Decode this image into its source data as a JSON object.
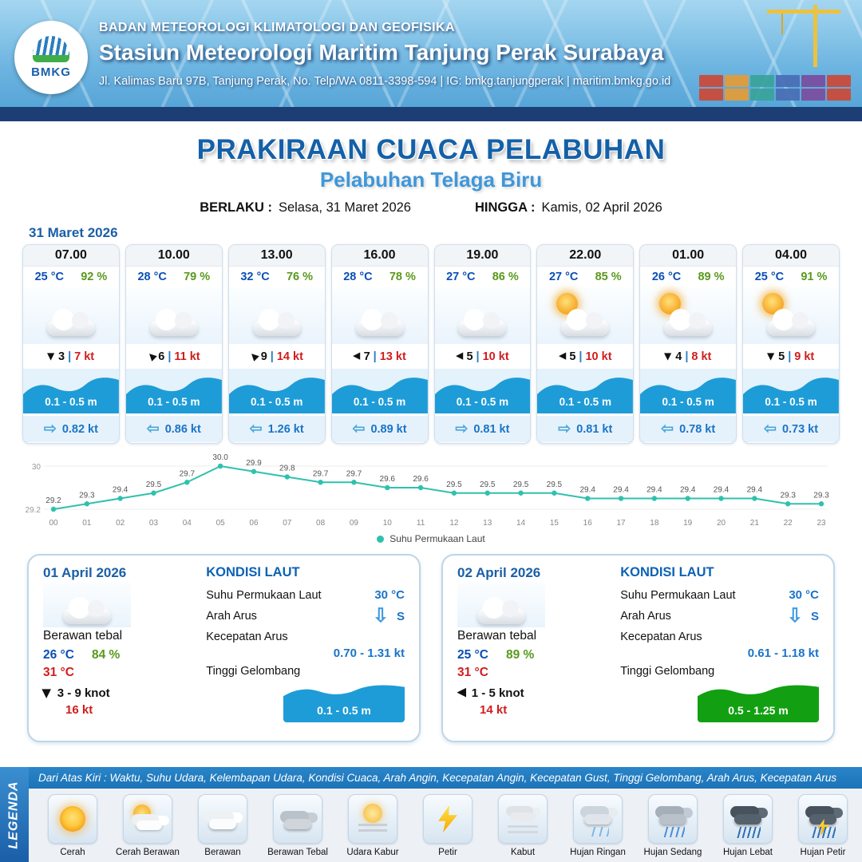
{
  "colors": {
    "header_strip_navy": "#1d3e74",
    "title_blue": "#1460a8",
    "subtitle_blue": "#3f97d9",
    "date_blue": "#1a5fa8",
    "temp_blue": "#0a4fb5",
    "value_blue": "#1a74c8",
    "humidity_green": "#59991c",
    "gust_red": "#d21c1c",
    "wave_blue": "#1e9cd7",
    "wave_green": "#12a012",
    "chart_teal": "#2fc1ad",
    "legend_bar_blue": "#1c73b8"
  },
  "header": {
    "logo_text": "BMKG",
    "agency": "BADAN METEOROLOGI KLIMATOLOGI DAN GEOFISIKA",
    "station": "Stasiun Meteorologi Maritim Tanjung Perak Surabaya",
    "address": "Jl. Kalimas Baru 97B, Tanjung Perak, No. Telp/WA 0811-3398-594 | IG: bmkg.tanjungperak | maritim.bmkg.go.id"
  },
  "title": {
    "main": "PRAKIRAAN CUACA PELABUHAN",
    "port": "Pelabuhan Telaga Biru",
    "valid_label": "BERLAKU :",
    "valid_value": "Selasa, 31 Maret 2026",
    "until_label": "HINGGA :",
    "until_value": "Kamis, 02 April 2026"
  },
  "hourly": {
    "date": "31 Maret 2026",
    "sep": "|",
    "cards": [
      {
        "time": "07.00",
        "temp": "25 °C",
        "hum": "92 %",
        "icon": "berawan",
        "wind_dir": "S",
        "wind_speed": "3",
        "gust": "7 kt",
        "wave": "0.1 - 0.5 m",
        "cur_dir": "E",
        "cur_speed": "0.82 kt"
      },
      {
        "time": "10.00",
        "temp": "28 °C",
        "hum": "79 %",
        "icon": "berawan",
        "wind_dir": "NW",
        "wind_speed": "6",
        "gust": "11 kt",
        "wave": "0.1 - 0.5 m",
        "cur_dir": "W",
        "cur_speed": "0.86 kt"
      },
      {
        "time": "13.00",
        "temp": "32 °C",
        "hum": "76 %",
        "icon": "berawan",
        "wind_dir": "NW",
        "wind_speed": "9",
        "gust": "14 kt",
        "wave": "0.1 - 0.5 m",
        "cur_dir": "W",
        "cur_speed": "1.26 kt"
      },
      {
        "time": "16.00",
        "temp": "28 °C",
        "hum": "78 %",
        "icon": "berawan",
        "wind_dir": "W",
        "wind_speed": "7",
        "gust": "13 kt",
        "wave": "0.1 - 0.5 m",
        "cur_dir": "W",
        "cur_speed": "0.89 kt"
      },
      {
        "time": "19.00",
        "temp": "27 °C",
        "hum": "86 %",
        "icon": "berawan",
        "wind_dir": "W",
        "wind_speed": "5",
        "gust": "10 kt",
        "wave": "0.1 - 0.5 m",
        "cur_dir": "E",
        "cur_speed": "0.81 kt"
      },
      {
        "time": "22.00",
        "temp": "27 °C",
        "hum": "85 %",
        "icon": "cerah-berawan",
        "wind_dir": "W",
        "wind_speed": "5",
        "gust": "10 kt",
        "wave": "0.1 - 0.5 m",
        "cur_dir": "E",
        "cur_speed": "0.81 kt"
      },
      {
        "time": "01.00",
        "temp": "26 °C",
        "hum": "89 %",
        "icon": "cerah-berawan",
        "wind_dir": "S",
        "wind_speed": "4",
        "gust": "8 kt",
        "wave": "0.1 - 0.5 m",
        "cur_dir": "W",
        "cur_speed": "0.78 kt"
      },
      {
        "time": "04.00",
        "temp": "25 °C",
        "hum": "91 %",
        "icon": "cerah-berawan",
        "wind_dir": "S",
        "wind_speed": "5",
        "gust": "9 kt",
        "wave": "0.1 - 0.5 m",
        "cur_dir": "W",
        "cur_speed": "0.73 kt"
      }
    ]
  },
  "chart_data": {
    "type": "line",
    "series_name": "Suhu Permukaan Laut",
    "x": [
      "00",
      "01",
      "02",
      "03",
      "04",
      "05",
      "06",
      "07",
      "08",
      "09",
      "10",
      "11",
      "12",
      "13",
      "14",
      "15",
      "16",
      "17",
      "18",
      "19",
      "20",
      "21",
      "22",
      "23"
    ],
    "values": [
      29.2,
      29.3,
      29.4,
      29.5,
      29.7,
      30.0,
      29.9,
      29.8,
      29.7,
      29.7,
      29.6,
      29.6,
      29.5,
      29.5,
      29.5,
      29.5,
      29.4,
      29.4,
      29.4,
      29.4,
      29.4,
      29.4,
      29.3,
      29.3
    ],
    "ylim": [
      29.2,
      30.0
    ],
    "ytick_labels": [
      "30",
      "29.2"
    ],
    "line_color": "#2fc1ad",
    "legend_position": "bottom",
    "grid": false
  },
  "daily": [
    {
      "date": "01 April 2026",
      "icon": "berawan-tebal",
      "cond": "Berawan tebal",
      "temp_min": "26 °C",
      "hum": "84 %",
      "temp_max": "31 °C",
      "wind_dir": "S",
      "wind_range": "3 - 9 knot",
      "gust": "16 kt",
      "sea": {
        "title": "KONDISI LAUT",
        "sst_label": "Suhu Permukaan Laut",
        "sst": "30 °C",
        "dir_label": "Arah Arus",
        "dir": "S",
        "speed_label": "Kecepatan Arus",
        "speed": "0.70 - 1.31 kt",
        "wave_label": "Tinggi Gelombang",
        "wave": "0.1 - 0.5 m",
        "wave_tone": "blue"
      }
    },
    {
      "date": "02 April 2026",
      "icon": "berawan-tebal",
      "cond": "Berawan tebal",
      "temp_min": "25 °C",
      "hum": "89 %",
      "temp_max": "31 °C",
      "wind_dir": "W",
      "wind_range": "1 - 5 knot",
      "gust": "14 kt",
      "sea": {
        "title": "KONDISI LAUT",
        "sst_label": "Suhu Permukaan Laut",
        "sst": "30 °C",
        "dir_label": "Arah Arus",
        "dir": "S",
        "speed_label": "Kecepatan Arus",
        "speed": "0.61 - 1.18 kt",
        "wave_label": "Tinggi Gelombang",
        "wave": "0.5 - 1.25 m",
        "wave_tone": "green"
      }
    }
  ],
  "legend": {
    "title": "LEGENDA",
    "note": "Dari Atas Kiri : Waktu, Suhu Udara, Kelembapan Udara, Kondisi Cuaca, Arah Angin, Kecepatan Angin, Kecepatan Gust, Tinggi Gelombang, Arah Arus, Kecepatan Arus",
    "items": [
      {
        "label": "Cerah",
        "icon": "cerah"
      },
      {
        "label": "Cerah Berawan",
        "icon": "cerah-berawan"
      },
      {
        "label": "Berawan",
        "icon": "berawan"
      },
      {
        "label": "Berawan Tebal",
        "icon": "berawan-tebal"
      },
      {
        "label": "Udara Kabur",
        "icon": "udara-kabur"
      },
      {
        "label": "Petir",
        "icon": "petir"
      },
      {
        "label": "Kabut",
        "icon": "kabut"
      },
      {
        "label": "Hujan Ringan",
        "icon": "hujan-ringan"
      },
      {
        "label": "Hujan Sedang",
        "icon": "hujan-sedang"
      },
      {
        "label": "Hujan Lebat",
        "icon": "hujan-lebat"
      },
      {
        "label": "Hujan Petir",
        "icon": "hujan-petir"
      }
    ]
  }
}
